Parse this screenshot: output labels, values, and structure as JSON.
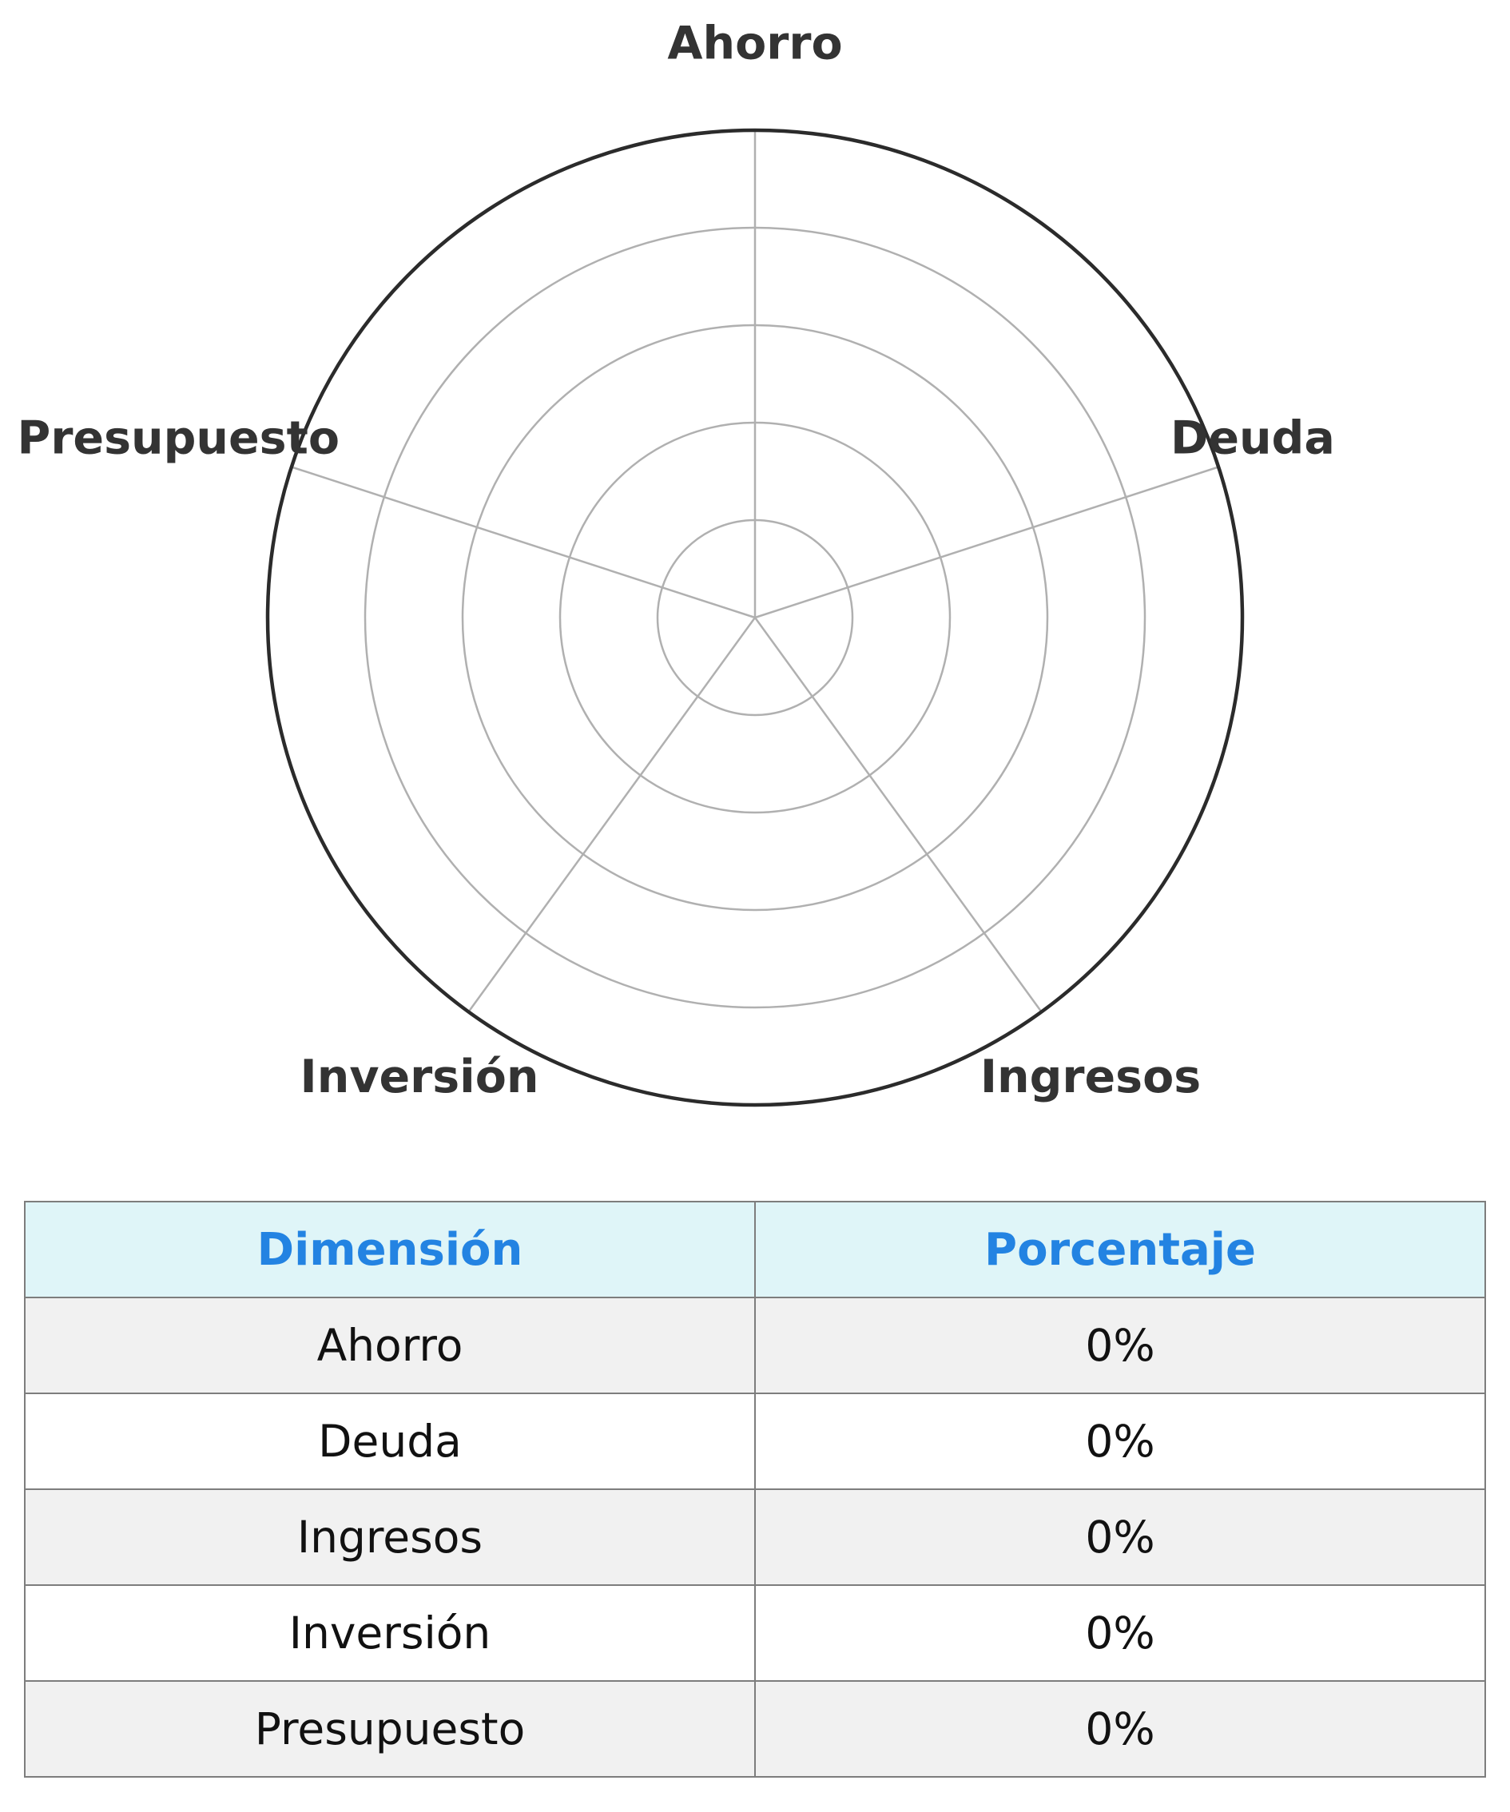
{
  "chart_data": {
    "type": "radar",
    "axes": [
      "Ahorro",
      "Deuda",
      "Ingresos",
      "Inversión",
      "Presupuesto"
    ],
    "values": [
      0,
      0,
      0,
      0,
      0
    ],
    "unit": "%",
    "rlim": [
      0,
      100
    ],
    "rings": 5,
    "grid": true,
    "colors": {
      "grid": "#b0b0b0",
      "outer_ring": "#2b2b2b",
      "labels": "#333333"
    }
  },
  "table": {
    "headers": [
      "Dimensión",
      "Porcentaje"
    ],
    "rows": [
      [
        "Ahorro",
        "0%"
      ],
      [
        "Deuda",
        "0%"
      ],
      [
        "Ingresos",
        "0%"
      ],
      [
        "Inversión",
        "0%"
      ],
      [
        "Presupuesto",
        "0%"
      ]
    ],
    "colors": {
      "header_bg": "#dff5f8",
      "header_text": "#2383e2",
      "stripe_bg": "#f1f1f1",
      "border": "#7d7d7d"
    }
  }
}
